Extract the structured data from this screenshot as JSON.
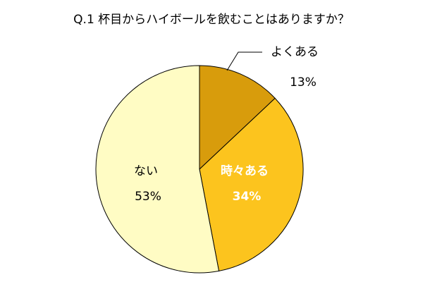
{
  "chart_data": {
    "type": "pie",
    "title": "Q.1 杯目からハイボールを飲むことはありますか？",
    "categories": [
      "よくある",
      "時々ある",
      "ない"
    ],
    "values": [
      13,
      34,
      53
    ],
    "value_labels": [
      "13%",
      "34%",
      "53%"
    ],
    "colors": [
      "#d89c0c",
      "#fcc41e",
      "#fffcc4"
    ]
  }
}
